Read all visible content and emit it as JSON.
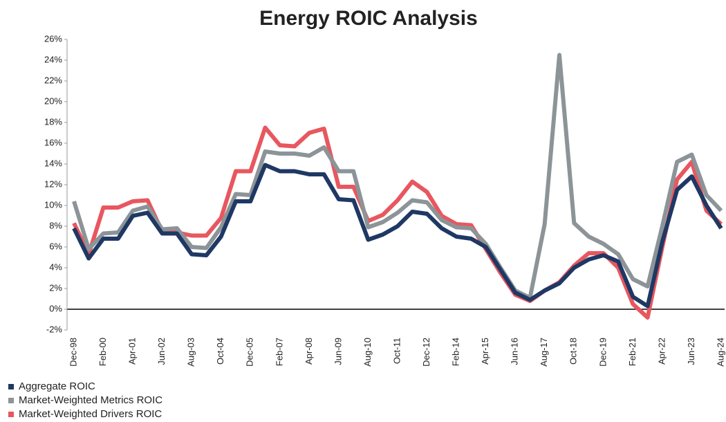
{
  "chart_data": {
    "type": "line",
    "title": "Energy ROIC Analysis",
    "categories": [
      "Dec-98",
      null,
      "Feb-00",
      null,
      "Apr-01",
      null,
      "Jun-02",
      null,
      "Aug-03",
      null,
      "Oct-04",
      null,
      "Dec-05",
      null,
      "Feb-07",
      null,
      "Apr-08",
      null,
      "Jun-09",
      null,
      "Aug-10",
      null,
      "Oct-11",
      null,
      "Dec-12",
      null,
      "Feb-14",
      null,
      "Apr-15",
      null,
      "Jun-16",
      null,
      "Aug-17",
      null,
      "Oct-18",
      null,
      "Dec-19",
      null,
      "Feb-21",
      null,
      "Apr-22",
      null,
      "Jun-23",
      null,
      "Aug-24"
    ],
    "series": [
      {
        "name": "Aggregate ROIC",
        "color": "#1f3864",
        "values": [
          7.8,
          4.9,
          6.8,
          6.8,
          9.0,
          9.3,
          7.3,
          7.3,
          5.3,
          5.2,
          7.0,
          10.4,
          10.4,
          13.9,
          13.3,
          13.3,
          13.0,
          13.0,
          10.6,
          10.5,
          6.7,
          7.2,
          8.0,
          9.4,
          9.2,
          7.8,
          7.0,
          6.8,
          6.0,
          3.8,
          1.6,
          0.9,
          1.8,
          2.5,
          4.0,
          4.8,
          5.2,
          4.6,
          1.2,
          0.3,
          6.5,
          11.5,
          12.8,
          10.0,
          7.8
        ]
      },
      {
        "name": "Market-Weighted Metrics ROIC",
        "color": "#8c9498",
        "values": [
          10.4,
          5.8,
          7.3,
          7.4,
          9.5,
          9.9,
          7.7,
          7.8,
          6.0,
          5.9,
          7.9,
          11.1,
          11.0,
          15.2,
          15.0,
          15.0,
          14.8,
          15.6,
          13.3,
          13.3,
          7.9,
          8.4,
          9.3,
          10.5,
          10.3,
          8.6,
          7.9,
          7.8,
          6.3,
          4.0,
          1.8,
          1.1,
          8.2,
          24.5,
          8.3,
          7.0,
          6.3,
          5.3,
          2.9,
          2.2,
          8.0,
          14.2,
          14.9,
          11.0,
          9.5
        ]
      },
      {
        "name": "Market-Weighted Drivers ROIC",
        "color": "#e8575f",
        "values": [
          8.3,
          5.3,
          9.8,
          9.8,
          10.4,
          10.5,
          7.5,
          7.4,
          7.1,
          7.1,
          8.8,
          13.3,
          13.3,
          17.5,
          15.8,
          15.7,
          17.0,
          17.4,
          11.8,
          11.8,
          8.5,
          9.1,
          10.5,
          12.3,
          11.3,
          9.0,
          8.2,
          8.1,
          5.8,
          3.5,
          1.4,
          0.8,
          1.8,
          2.6,
          4.2,
          5.4,
          5.4,
          4.0,
          0.5,
          -0.8,
          6.0,
          12.5,
          14.2,
          9.5,
          8.2
        ]
      }
    ],
    "ylim": [
      -2,
      26
    ],
    "yticks": [
      {
        "value": -2,
        "label": "-2%"
      },
      {
        "value": 0,
        "label": "0%"
      },
      {
        "value": 2,
        "label": "2%"
      },
      {
        "value": 4,
        "label": "4%"
      },
      {
        "value": 6,
        "label": "6%"
      },
      {
        "value": 8,
        "label": "8%"
      },
      {
        "value": 10,
        "label": "10%"
      },
      {
        "value": 12,
        "label": "12%"
      },
      {
        "value": 14,
        "label": "14%"
      },
      {
        "value": 16,
        "label": "16%"
      },
      {
        "value": 18,
        "label": "18%"
      },
      {
        "value": 20,
        "label": "20%"
      },
      {
        "value": 22,
        "label": "22%"
      },
      {
        "value": 24,
        "label": "24%"
      },
      {
        "value": 26,
        "label": "26%"
      }
    ],
    "grid": false,
    "legend": "bottom-left"
  }
}
